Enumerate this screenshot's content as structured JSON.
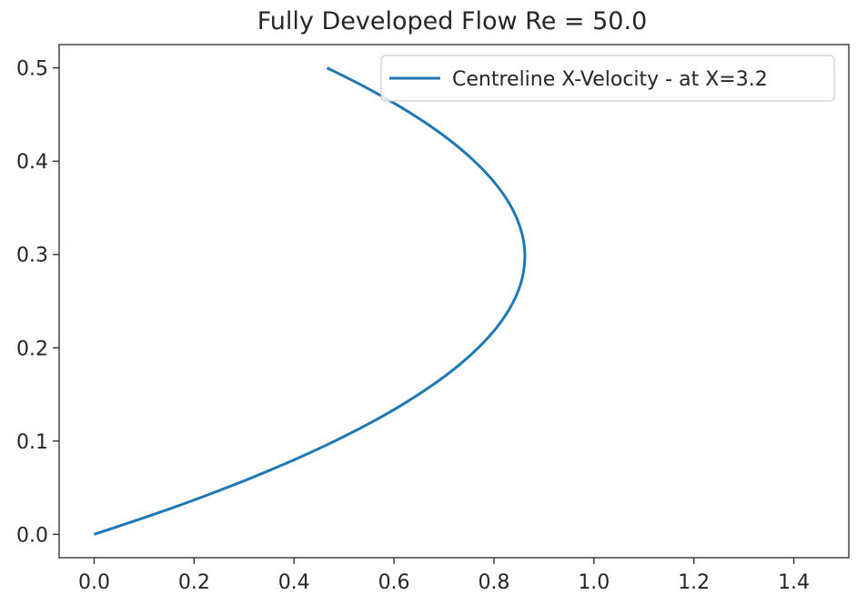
{
  "chart_data": {
    "type": "line",
    "title": "Fully Developed Flow Re = 50.0",
    "xlabel": "",
    "ylabel": "",
    "xlim": [
      -0.07,
      1.51
    ],
    "ylim": [
      -0.025,
      0.525
    ],
    "x_ticks": [
      0.0,
      0.2,
      0.4,
      0.6,
      0.8,
      1.0,
      1.2,
      1.4
    ],
    "x_tick_labels": [
      "0.0",
      "0.2",
      "0.4",
      "0.6",
      "0.8",
      "1.0",
      "1.2",
      "1.4"
    ],
    "y_ticks": [
      0.0,
      0.1,
      0.2,
      0.3,
      0.4,
      0.5
    ],
    "y_tick_labels": [
      "0.0",
      "0.1",
      "0.2",
      "0.3",
      "0.4",
      "0.5"
    ],
    "grid": false,
    "legend_position": "top-right",
    "series": [
      {
        "name": "Centreline X-Velocity - at X=3.2",
        "color": "#1f77b4",
        "x": [
          0.0,
          0.1118,
          0.2159,
          0.3121,
          0.4006,
          0.4814,
          0.5544,
          0.6196,
          0.677,
          0.7267,
          0.7686,
          0.8028,
          0.8292,
          0.8478,
          0.8587,
          0.8618,
          0.8572,
          0.8447,
          0.8246,
          0.7966,
          0.7609,
          0.7175,
          0.6663,
          0.6073,
          0.5406,
          0.4661
        ],
        "y": [
          0.0,
          0.02,
          0.04,
          0.06,
          0.08,
          0.1,
          0.12,
          0.14,
          0.16,
          0.18,
          0.2,
          0.22,
          0.24,
          0.26,
          0.28,
          0.3,
          0.32,
          0.34,
          0.36,
          0.38,
          0.4,
          0.42,
          0.44,
          0.46,
          0.48,
          0.5
        ]
      }
    ]
  }
}
